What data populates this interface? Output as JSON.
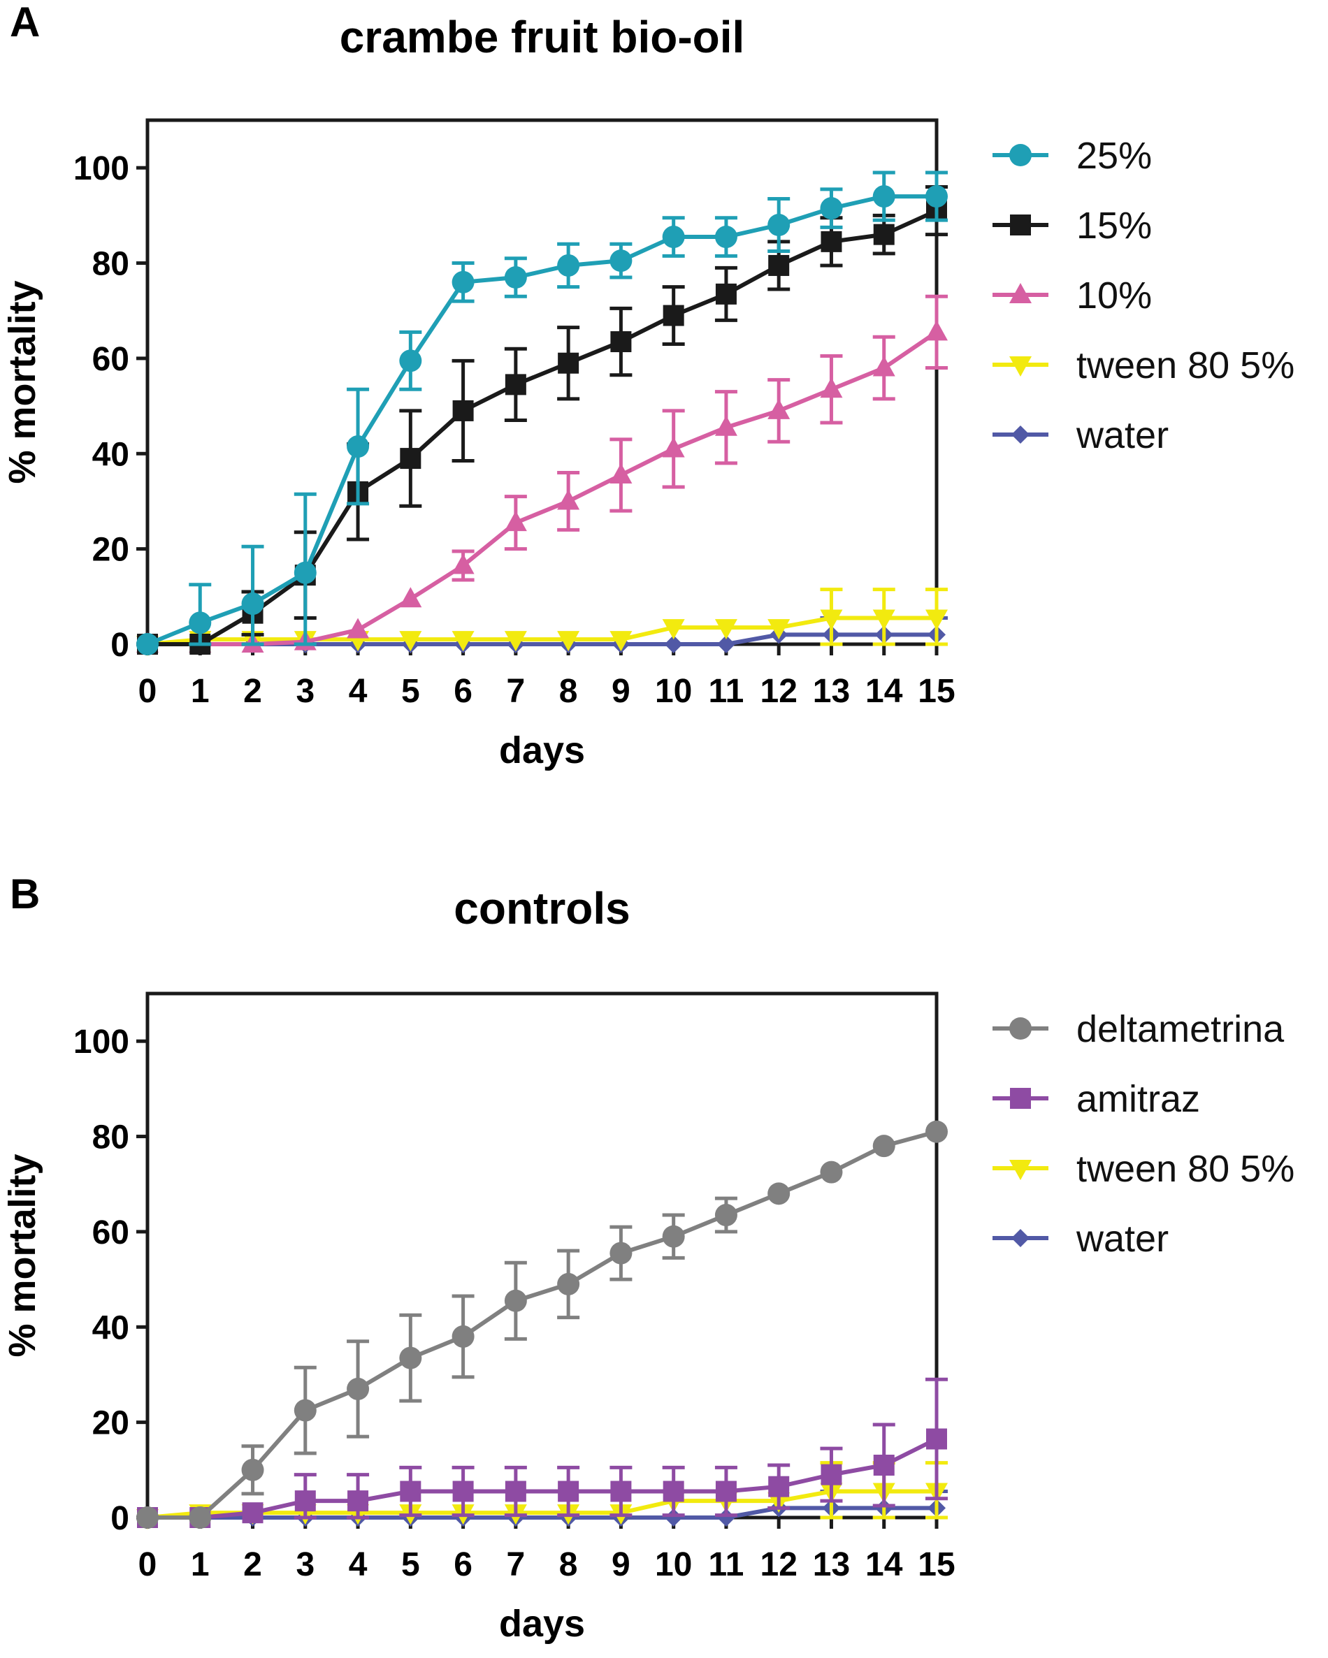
{
  "chart_data": [
    {
      "panel": "A",
      "type": "line",
      "title": "crambe fruit bio-oil",
      "xlabel": "days",
      "ylabel": "% mortality",
      "xlim": [
        0,
        15
      ],
      "ylim": [
        0,
        110
      ],
      "x": [
        0,
        1,
        2,
        3,
        4,
        5,
        6,
        7,
        8,
        9,
        10,
        11,
        12,
        13,
        14,
        15
      ],
      "xticks": [
        "0",
        "1",
        "2",
        "3",
        "4",
        "5",
        "6",
        "7",
        "8",
        "9",
        "10",
        "11",
        "12",
        "13",
        "14",
        "15"
      ],
      "yticks": [
        "0",
        "20",
        "40",
        "60",
        "80",
        "100"
      ],
      "grid": false,
      "legend": "right",
      "series": [
        {
          "name": "25%",
          "color": "#1f9fb5",
          "marker": "circle",
          "values": [
            0,
            4.5,
            8.5,
            15,
            41.5,
            59.5,
            76,
            77,
            79.5,
            80.5,
            85.5,
            85.5,
            88,
            91.5,
            94,
            94
          ],
          "errors": [
            0,
            8,
            12,
            16.5,
            12,
            6,
            4,
            4,
            4.5,
            3.5,
            4,
            4,
            5.5,
            4,
            5,
            5
          ]
        },
        {
          "name": "15%",
          "color": "#1a1a1a",
          "marker": "square",
          "values": [
            0,
            0,
            6.5,
            14.5,
            32,
            39,
            49,
            54.5,
            59,
            63.5,
            69,
            73.5,
            79.5,
            84.5,
            86,
            91
          ],
          "errors": [
            0,
            0,
            4.5,
            9,
            10,
            10,
            10.5,
            7.5,
            7.5,
            7,
            6,
            5.5,
            5,
            5,
            4,
            5
          ]
        },
        {
          "name": "10%",
          "color": "#d65fa2",
          "marker": "triangle-up",
          "values": [
            0,
            0,
            0,
            0.5,
            3,
            9.5,
            16.5,
            25.5,
            30,
            35.5,
            41,
            45.5,
            49,
            53.5,
            58,
            65.5
          ],
          "errors": [
            0,
            0,
            0,
            0,
            0,
            0,
            3,
            5.5,
            6,
            7.5,
            8,
            7.5,
            6.5,
            7,
            6.5,
            7.5
          ]
        },
        {
          "name": "tween 80 5%",
          "color": "#f2ea0f",
          "marker": "triangle-down",
          "values": [
            0,
            1,
            1,
            1,
            1,
            1,
            1,
            1,
            1,
            1,
            3.5,
            3.5,
            3.5,
            5.5,
            5.5,
            5.5
          ],
          "errors": [
            0,
            0,
            0,
            0,
            0,
            0,
            0,
            0,
            0,
            0,
            0,
            0,
            0,
            6,
            6,
            6
          ]
        },
        {
          "name": "water",
          "color": "#5159a6",
          "marker": "diamond",
          "values": [
            0,
            0,
            0,
            0,
            0,
            0,
            0,
            0,
            0,
            0,
            0,
            0,
            2,
            2,
            2,
            2
          ],
          "errors": [
            0,
            0,
            0,
            0,
            0,
            0,
            0,
            0,
            0,
            0,
            0,
            0,
            0,
            3.5,
            3.5,
            3.5
          ]
        }
      ]
    },
    {
      "panel": "B",
      "type": "line",
      "title": "controls",
      "xlabel": "days",
      "ylabel": "% mortality",
      "xlim": [
        0,
        15
      ],
      "ylim": [
        0,
        110
      ],
      "x": [
        0,
        1,
        2,
        3,
        4,
        5,
        6,
        7,
        8,
        9,
        10,
        11,
        12,
        13,
        14,
        15
      ],
      "xticks": [
        "0",
        "1",
        "2",
        "3",
        "4",
        "5",
        "6",
        "7",
        "8",
        "9",
        "10",
        "11",
        "12",
        "13",
        "14",
        "15"
      ],
      "yticks": [
        "0",
        "20",
        "40",
        "60",
        "80",
        "100"
      ],
      "grid": false,
      "legend": "right",
      "series": [
        {
          "name": "deltametrina",
          "color": "#808080",
          "marker": "circle",
          "values": [
            0,
            0,
            10,
            22.5,
            27,
            33.5,
            38,
            45.5,
            49,
            55.5,
            59,
            63.5,
            68,
            72.5,
            78,
            81
          ],
          "errors": [
            0,
            0,
            5,
            9,
            10,
            9,
            8.5,
            8,
            7,
            5.5,
            4.5,
            3.5,
            0,
            0,
            0,
            0
          ]
        },
        {
          "name": "amitraz",
          "color": "#8e4ba3",
          "marker": "square",
          "values": [
            0,
            0,
            1,
            3.5,
            3.5,
            5.5,
            5.5,
            5.5,
            5.5,
            5.5,
            5.5,
            5.5,
            6.5,
            9,
            11,
            16.5
          ],
          "errors": [
            0,
            0,
            0,
            5.5,
            5.5,
            5,
            5,
            5,
            5,
            5,
            5,
            5,
            4.5,
            5.5,
            8.5,
            12.5
          ]
        },
        {
          "name": "tween 80 5%",
          "color": "#f2ea0f",
          "marker": "triangle-down",
          "values": [
            0,
            1,
            1,
            1,
            1,
            1,
            1,
            1,
            1,
            1,
            3.5,
            3.5,
            3.5,
            5.5,
            5.5,
            5.5
          ],
          "errors": [
            0,
            0,
            0,
            0,
            0,
            0,
            0,
            0,
            0,
            0,
            0,
            0,
            0,
            6,
            6,
            6
          ]
        },
        {
          "name": "water",
          "color": "#5159a6",
          "marker": "diamond",
          "values": [
            0,
            0,
            0,
            0,
            0,
            0,
            0,
            0,
            0,
            0,
            0,
            0,
            2,
            2,
            2,
            2
          ],
          "errors": [
            0,
            0,
            0,
            0,
            0,
            0,
            0,
            0,
            0,
            0,
            0,
            0,
            0,
            3.5,
            3.5,
            3.5
          ]
        }
      ]
    }
  ]
}
